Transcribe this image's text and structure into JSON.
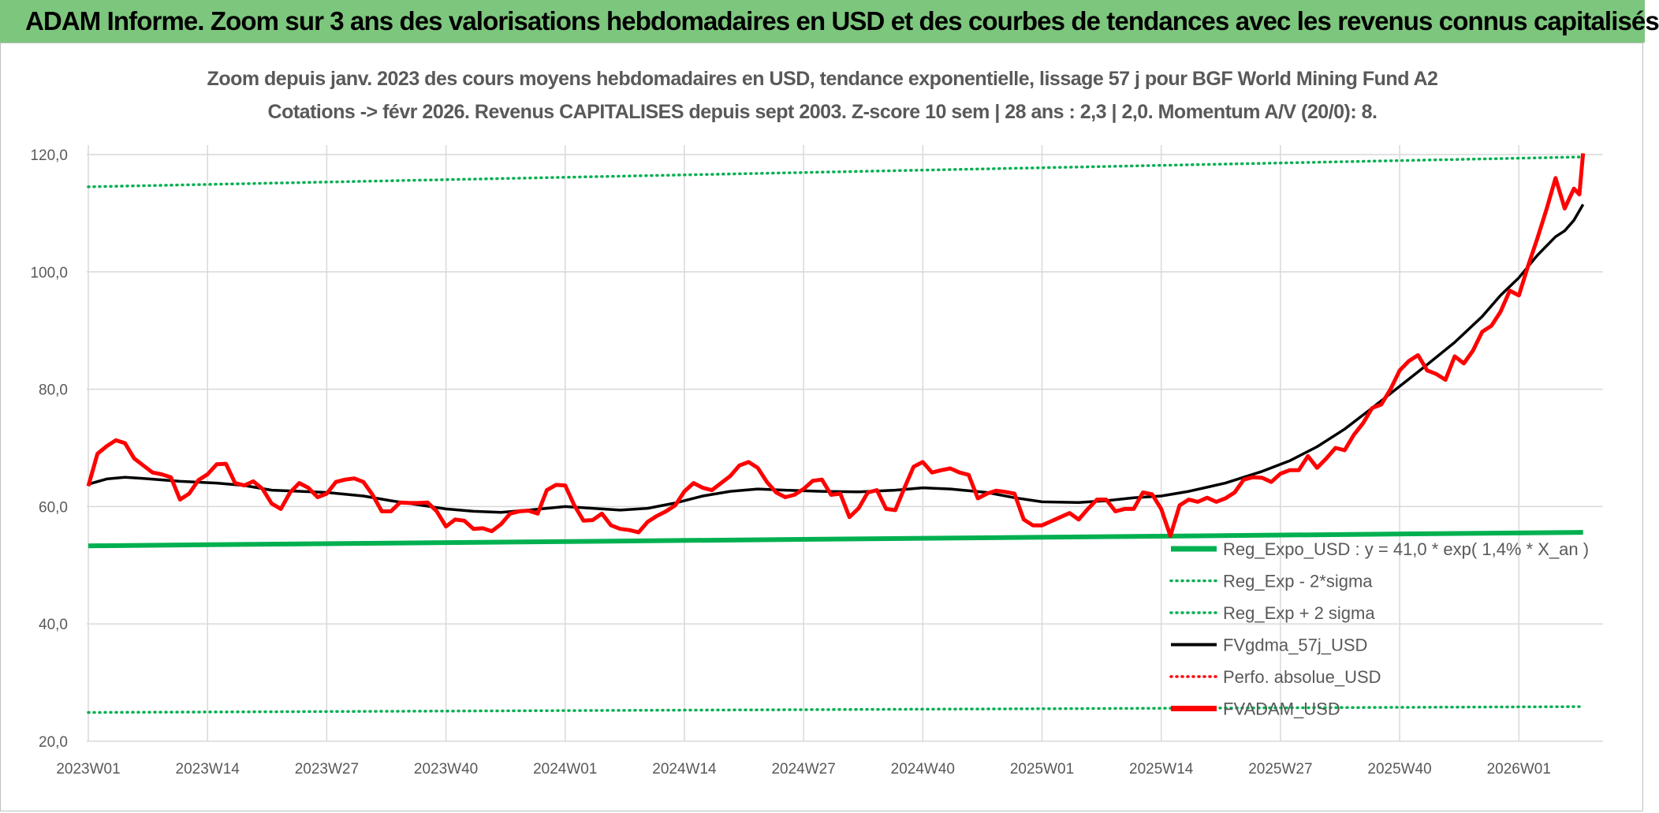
{
  "header": {
    "title": "ADAM Informe. Zoom sur 3 ans des valorisations hebdomadaires en USD et des courbes de tendances avec les revenus connus capitalisés"
  },
  "chart_data": {
    "type": "line",
    "title_line1": "Zoom depuis janv. 2023 des cours moyens hebdomadaires en USD, tendance exponentielle, lissage 57 j pour BGF World Mining Fund A2",
    "title_line2": "Cotations -> févr 2026. Revenus CAPITALISES depuis sept 2003. Z-score 10 sem | 28 ans : 2,3 | 2,0. Momentum A/V (20/0): 8.",
    "ylim": [
      20,
      120
    ],
    "y_ticks": [
      "20,0",
      "40,0",
      "60,0",
      "80,0",
      "100,0",
      "120,0"
    ],
    "x_count": 164,
    "x_ticks": [
      {
        "index": 0,
        "label": "2023W01"
      },
      {
        "index": 13,
        "label": "2023W14"
      },
      {
        "index": 26,
        "label": "2023W27"
      },
      {
        "index": 39,
        "label": "2023W40"
      },
      {
        "index": 52,
        "label": "2024W01"
      },
      {
        "index": 65,
        "label": "2024W14"
      },
      {
        "index": 78,
        "label": "2024W27"
      },
      {
        "index": 91,
        "label": "2024W40"
      },
      {
        "index": 104,
        "label": "2025W01"
      },
      {
        "index": 117,
        "label": "2025W14"
      },
      {
        "index": 130,
        "label": "2025W27"
      },
      {
        "index": 143,
        "label": "2025W40"
      },
      {
        "index": 156,
        "label": "2026W01"
      }
    ],
    "legend": [
      {
        "label": "Reg_Expo_USD : y = 41,0 * exp( 1,4% *  X_an )",
        "color": "#00b050",
        "style": "thick"
      },
      {
        "label": "Reg_Exp - 2*sigma",
        "color": "#00b050",
        "style": "dotted"
      },
      {
        "label": "Reg_Exp + 2 sigma",
        "color": "#00b050",
        "style": "dotted"
      },
      {
        "label": "FVgdma_57j_USD",
        "color": "#000000",
        "style": "solid"
      },
      {
        "label": "Perfo. absolue_USD",
        "color": "#ff0000",
        "style": "dotted"
      },
      {
        "label": "FVADAM_USD",
        "color": "#ff0000",
        "style": "thick"
      }
    ],
    "series": [
      {
        "name": "Reg_Expo_USD",
        "color": "#00b050",
        "width": 6,
        "dash": "",
        "points": [
          [
            0,
            53.3
          ],
          [
            163,
            55.6
          ]
        ]
      },
      {
        "name": "Reg_Exp - 2*sigma",
        "color": "#00b050",
        "width": 3.5,
        "dash": "1 6",
        "points": [
          [
            0,
            24.9
          ],
          [
            163,
            25.9
          ]
        ]
      },
      {
        "name": "Reg_Exp + 2 sigma",
        "color": "#00b050",
        "width": 3.5,
        "dash": "1 6",
        "points": [
          [
            0,
            114.5
          ],
          [
            163,
            119.6
          ]
        ]
      },
      {
        "name": "FVgdma_57j_USD",
        "color": "#000000",
        "width": 3.5,
        "dash": "",
        "points": [
          [
            0,
            63.8
          ],
          [
            2,
            64.7
          ],
          [
            4,
            65.0
          ],
          [
            6,
            64.8
          ],
          [
            10,
            64.3
          ],
          [
            14,
            64.0
          ],
          [
            17,
            63.6
          ],
          [
            20,
            62.8
          ],
          [
            26,
            62.4
          ],
          [
            30,
            61.8
          ],
          [
            33,
            61.0
          ],
          [
            36,
            60.3
          ],
          [
            39,
            59.6
          ],
          [
            42,
            59.2
          ],
          [
            45,
            59.0
          ],
          [
            48,
            59.4
          ],
          [
            52,
            60.0
          ],
          [
            55,
            59.7
          ],
          [
            58,
            59.4
          ],
          [
            61,
            59.7
          ],
          [
            64,
            60.6
          ],
          [
            67,
            61.8
          ],
          [
            70,
            62.6
          ],
          [
            73,
            63.0
          ],
          [
            76,
            62.8
          ],
          [
            80,
            62.6
          ],
          [
            84,
            62.5
          ],
          [
            88,
            62.8
          ],
          [
            91,
            63.2
          ],
          [
            94,
            63.0
          ],
          [
            98,
            62.4
          ],
          [
            101,
            61.5
          ],
          [
            104,
            60.8
          ],
          [
            108,
            60.7
          ],
          [
            111,
            61.0
          ],
          [
            114,
            61.5
          ],
          [
            117,
            61.8
          ],
          [
            120,
            62.6
          ],
          [
            124,
            64.0
          ],
          [
            128,
            66.0
          ],
          [
            131,
            67.8
          ],
          [
            134,
            70.2
          ],
          [
            137,
            73.2
          ],
          [
            140,
            76.8
          ],
          [
            143,
            80.5
          ],
          [
            146,
            84.2
          ],
          [
            149,
            88.0
          ],
          [
            152,
            92.4
          ],
          [
            154,
            96.0
          ],
          [
            156,
            99.0
          ],
          [
            158,
            102.8
          ],
          [
            160,
            106.0
          ],
          [
            161,
            107.0
          ],
          [
            162,
            108.8
          ],
          [
            163,
            111.5
          ]
        ]
      },
      {
        "name": "FVADAM_USD",
        "color": "#ff0000",
        "width": 5,
        "dash": "",
        "points": [
          [
            0,
            63.5
          ],
          [
            1,
            69.0
          ],
          [
            2,
            70.3
          ],
          [
            3,
            71.3
          ],
          [
            4,
            70.8
          ],
          [
            5,
            68.2
          ],
          [
            6,
            67.0
          ],
          [
            7,
            65.8
          ],
          [
            8,
            65.5
          ],
          [
            9,
            65.0
          ],
          [
            10,
            61.2
          ],
          [
            11,
            62.2
          ],
          [
            12,
            64.5
          ],
          [
            13,
            65.5
          ],
          [
            14,
            67.2
          ],
          [
            15,
            67.3
          ],
          [
            16,
            64.0
          ],
          [
            17,
            63.6
          ],
          [
            18,
            64.3
          ],
          [
            19,
            63.0
          ],
          [
            20,
            60.5
          ],
          [
            21,
            59.6
          ],
          [
            22,
            62.4
          ],
          [
            23,
            64.0
          ],
          [
            24,
            63.2
          ],
          [
            25,
            61.6
          ],
          [
            26,
            62.2
          ],
          [
            27,
            64.2
          ],
          [
            28,
            64.6
          ],
          [
            29,
            64.8
          ],
          [
            30,
            64.2
          ],
          [
            31,
            62.0
          ],
          [
            32,
            59.2
          ],
          [
            33,
            59.2
          ],
          [
            34,
            60.7
          ],
          [
            35,
            60.6
          ],
          [
            36,
            60.6
          ],
          [
            37,
            60.7
          ],
          [
            38,
            59.2
          ],
          [
            39,
            56.6
          ],
          [
            40,
            57.8
          ],
          [
            41,
            57.6
          ],
          [
            42,
            56.2
          ],
          [
            43,
            56.3
          ],
          [
            44,
            55.8
          ],
          [
            45,
            57.0
          ],
          [
            46,
            58.8
          ],
          [
            47,
            59.2
          ],
          [
            48,
            59.3
          ],
          [
            49,
            58.8
          ],
          [
            50,
            62.8
          ],
          [
            51,
            63.7
          ],
          [
            52,
            63.6
          ],
          [
            53,
            60.2
          ],
          [
            54,
            57.6
          ],
          [
            55,
            57.7
          ],
          [
            56,
            58.8
          ],
          [
            57,
            56.8
          ],
          [
            58,
            56.2
          ],
          [
            59,
            56.0
          ],
          [
            60,
            55.6
          ],
          [
            61,
            57.4
          ],
          [
            62,
            58.4
          ],
          [
            63,
            59.2
          ],
          [
            64,
            60.2
          ],
          [
            65,
            62.6
          ],
          [
            66,
            64.0
          ],
          [
            67,
            63.2
          ],
          [
            68,
            62.8
          ],
          [
            69,
            64.0
          ],
          [
            70,
            65.2
          ],
          [
            71,
            67.0
          ],
          [
            72,
            67.6
          ],
          [
            73,
            66.6
          ],
          [
            74,
            64.2
          ],
          [
            75,
            62.4
          ],
          [
            76,
            61.6
          ],
          [
            77,
            62.0
          ],
          [
            78,
            63.0
          ],
          [
            79,
            64.4
          ],
          [
            80,
            64.6
          ],
          [
            81,
            62.0
          ],
          [
            82,
            62.2
          ],
          [
            83,
            58.2
          ],
          [
            84,
            59.7
          ],
          [
            85,
            62.4
          ],
          [
            86,
            62.8
          ],
          [
            87,
            59.6
          ],
          [
            88,
            59.4
          ],
          [
            89,
            63.2
          ],
          [
            90,
            66.8
          ],
          [
            91,
            67.6
          ],
          [
            92,
            65.8
          ],
          [
            93,
            66.2
          ],
          [
            94,
            66.5
          ],
          [
            95,
            65.8
          ],
          [
            96,
            65.4
          ],
          [
            97,
            61.4
          ],
          [
            98,
            62.2
          ],
          [
            99,
            62.7
          ],
          [
            100,
            62.5
          ],
          [
            101,
            62.2
          ],
          [
            102,
            57.8
          ],
          [
            103,
            56.8
          ],
          [
            104,
            56.8
          ],
          [
            105,
            57.5
          ],
          [
            106,
            58.2
          ],
          [
            107,
            58.9
          ],
          [
            108,
            57.8
          ],
          [
            109,
            59.6
          ],
          [
            110,
            61.2
          ],
          [
            111,
            61.2
          ],
          [
            112,
            59.2
          ],
          [
            113,
            59.6
          ],
          [
            114,
            59.6
          ],
          [
            115,
            62.4
          ],
          [
            116,
            62.1
          ],
          [
            117,
            59.6
          ],
          [
            118,
            55.0
          ],
          [
            119,
            60.2
          ],
          [
            120,
            61.2
          ],
          [
            121,
            60.8
          ],
          [
            122,
            61.5
          ],
          [
            123,
            60.8
          ],
          [
            124,
            61.4
          ],
          [
            125,
            62.4
          ],
          [
            126,
            64.6
          ],
          [
            127,
            65.0
          ],
          [
            128,
            64.9
          ],
          [
            129,
            64.2
          ],
          [
            130,
            65.6
          ],
          [
            131,
            66.2
          ],
          [
            132,
            66.2
          ],
          [
            133,
            68.6
          ],
          [
            134,
            66.6
          ],
          [
            135,
            68.2
          ],
          [
            136,
            70.0
          ],
          [
            137,
            69.6
          ],
          [
            138,
            72.2
          ],
          [
            139,
            74.2
          ],
          [
            140,
            76.8
          ],
          [
            141,
            77.4
          ],
          [
            142,
            80.0
          ],
          [
            143,
            83.2
          ],
          [
            144,
            84.8
          ],
          [
            145,
            85.8
          ],
          [
            146,
            83.2
          ],
          [
            147,
            82.6
          ],
          [
            148,
            81.6
          ],
          [
            149,
            85.6
          ],
          [
            150,
            84.4
          ],
          [
            151,
            86.6
          ],
          [
            152,
            89.8
          ],
          [
            153,
            90.8
          ],
          [
            154,
            93.2
          ],
          [
            155,
            96.8
          ],
          [
            156,
            96.0
          ],
          [
            157,
            101.0
          ],
          [
            158,
            105.6
          ],
          [
            159,
            110.6
          ],
          [
            160,
            116.0
          ],
          [
            161,
            110.8
          ],
          [
            162,
            114.2
          ],
          [
            162.6,
            113.2
          ],
          [
            163,
            120.2
          ]
        ]
      }
    ]
  }
}
